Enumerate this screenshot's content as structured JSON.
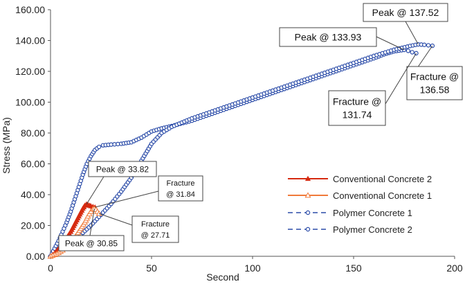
{
  "chart_data": {
    "type": "line",
    "xlabel": "Second",
    "ylabel": "Stress (MPa)",
    "xlim": [
      0,
      200
    ],
    "ylim": [
      0,
      160
    ],
    "x_ticks": [
      "0",
      "50",
      "100",
      "150",
      "200"
    ],
    "y_ticks": [
      "0.00",
      "20.00",
      "40.00",
      "60.00",
      "80.00",
      "100.00",
      "120.00",
      "140.00",
      "160.00"
    ],
    "grid": false,
    "legend_position": "lower-right",
    "series": [
      {
        "name": "Conventional Concrete 2",
        "color": "#d62a10",
        "marker": "triangle-filled",
        "points": [
          [
            0,
            0
          ],
          [
            2,
            2
          ],
          [
            4,
            5
          ],
          [
            6,
            8.5
          ],
          [
            8,
            12
          ],
          [
            10,
            16
          ],
          [
            12,
            21
          ],
          [
            14,
            26
          ],
          [
            15,
            28.5
          ],
          [
            16,
            31
          ],
          [
            17,
            33
          ],
          [
            17.8,
            33.82
          ],
          [
            18.6,
            33.4
          ],
          [
            19.4,
            33
          ],
          [
            20,
            32.6
          ],
          [
            21,
            32.2
          ],
          [
            22,
            31.84
          ]
        ]
      },
      {
        "name": "Conventional Concrete 1",
        "color": "#f07a3a",
        "marker": "triangle-open",
        "points": [
          [
            0,
            0
          ],
          [
            3,
            1.5
          ],
          [
            6,
            4
          ],
          [
            9,
            7.5
          ],
          [
            11,
            10.5
          ],
          [
            13,
            14
          ],
          [
            15,
            18
          ],
          [
            17,
            22
          ],
          [
            18.5,
            26
          ],
          [
            20,
            29
          ],
          [
            21,
            30.6
          ],
          [
            21.7,
            30.85
          ],
          [
            22.5,
            30.3
          ],
          [
            23.2,
            29
          ],
          [
            24,
            27.71
          ]
        ]
      },
      {
        "name": "Polymer Concrete 1",
        "color": "#2a4ba8",
        "marker": "circle-open",
        "points": [
          [
            0,
            0
          ],
          [
            2,
            5
          ],
          [
            4,
            10
          ],
          [
            6,
            16
          ],
          [
            8,
            22
          ],
          [
            10,
            29
          ],
          [
            12,
            37
          ],
          [
            14,
            45
          ],
          [
            16,
            53
          ],
          [
            18,
            60
          ],
          [
            20,
            65
          ],
          [
            22,
            69
          ],
          [
            24,
            71
          ],
          [
            26,
            72
          ],
          [
            30,
            72.5
          ],
          [
            35,
            73
          ],
          [
            40,
            74
          ],
          [
            45,
            77
          ],
          [
            50,
            81
          ],
          [
            55,
            83
          ],
          [
            60,
            84.5
          ],
          [
            70,
            88
          ],
          [
            80,
            92.5
          ],
          [
            90,
            97
          ],
          [
            100,
            101.5
          ],
          [
            110,
            106
          ],
          [
            120,
            110.5
          ],
          [
            130,
            115
          ],
          [
            140,
            119.5
          ],
          [
            150,
            124
          ],
          [
            160,
            128.5
          ],
          [
            165,
            131
          ],
          [
            170,
            133
          ],
          [
            175,
            133.93
          ],
          [
            177,
            133.3
          ],
          [
            179,
            132.4
          ],
          [
            181,
            131.74
          ]
        ]
      },
      {
        "name": "Polymer Concrete 2",
        "color": "#2a4ba8",
        "marker": "circle-open",
        "points": [
          [
            0,
            0
          ],
          [
            5,
            3
          ],
          [
            10,
            8
          ],
          [
            15,
            14
          ],
          [
            20,
            20
          ],
          [
            25,
            27
          ],
          [
            30,
            34
          ],
          [
            35,
            42
          ],
          [
            40,
            51
          ],
          [
            45,
            62
          ],
          [
            50,
            73
          ],
          [
            55,
            80
          ],
          [
            60,
            84
          ],
          [
            70,
            89.5
          ],
          [
            80,
            94
          ],
          [
            90,
            98.5
          ],
          [
            100,
            103
          ],
          [
            110,
            107.5
          ],
          [
            120,
            112
          ],
          [
            130,
            116.5
          ],
          [
            140,
            121
          ],
          [
            150,
            125.5
          ],
          [
            160,
            130
          ],
          [
            170,
            134
          ],
          [
            178,
            136.5
          ],
          [
            182,
            137.52
          ],
          [
            185,
            137.2
          ],
          [
            187,
            136.9
          ],
          [
            189,
            136.58
          ]
        ]
      }
    ],
    "annotations": [
      {
        "text": "Peak @ 137.52",
        "x": 182,
        "y": 137.52
      },
      {
        "text": "Peak @ 133.93",
        "x": 175,
        "y": 133.93
      },
      {
        "text": "Fracture @ 136.58",
        "x": 189,
        "y": 136.58
      },
      {
        "text": "Fracture @ 131.74",
        "x": 181,
        "y": 131.74
      },
      {
        "text": "Peak @ 33.82",
        "x": 17.8,
        "y": 33.82
      },
      {
        "text": "Fracture @ 31.84",
        "x": 22,
        "y": 31.84
      },
      {
        "text": "Fracture @ 27.71",
        "x": 24,
        "y": 27.71
      },
      {
        "text": "Peak @ 30.85",
        "x": 21.7,
        "y": 30.85
      }
    ]
  }
}
